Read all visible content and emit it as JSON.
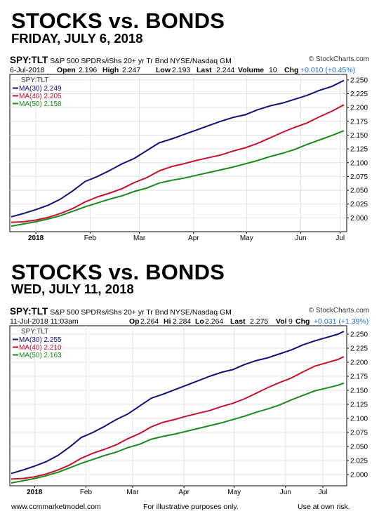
{
  "panels": [
    {
      "title": "STOCKS vs. BONDS",
      "subtitle": "FRIDAY, JULY 6, 2018",
      "symbol": "SPY:TLT",
      "description": "S&P 500 SPDRs/iShs 20+ yr Tr Bnd  NYSE/Nasdaq GM",
      "brand": "© StockCharts.com",
      "quote": [
        {
          "text": "6-Jul-2018",
          "bold": false
        },
        {
          "text": "Open",
          "bold": true
        },
        {
          "text": "2.196",
          "bold": false
        },
        {
          "text": "High",
          "bold": true
        },
        {
          "text": "2.247",
          "bold": false
        },
        {
          "text": "Low",
          "bold": true
        },
        {
          "text": "2.193",
          "bold": false
        },
        {
          "text": "Last",
          "bold": true
        },
        {
          "text": "2.244",
          "bold": false
        },
        {
          "text": "Volume",
          "bold": true
        },
        {
          "text": "10",
          "bold": false
        },
        {
          "text": "Chg",
          "bold": true
        },
        {
          "text": "+0.010 (+0.45%)",
          "bold": false,
          "chg": true
        }
      ]
    },
    {
      "title": "STOCKS vs. BONDS",
      "subtitle": "WED, JULY 11, 2018",
      "symbol": "SPY:TLT",
      "description": "S&P 500 SPDRs/iShs 20+ yr Tr Bnd  NYSE/Nasdaq GM",
      "brand": "© StockCharts.com",
      "quote": [
        {
          "text": "11-Jul-2018 11:03am",
          "bold": false
        },
        {
          "text": "Op",
          "bold": true
        },
        {
          "text": "2.264",
          "bold": false
        },
        {
          "text": "Hi",
          "bold": true
        },
        {
          "text": "2.284",
          "bold": false
        },
        {
          "text": "Lo",
          "bold": true
        },
        {
          "text": "2.264",
          "bold": false
        },
        {
          "text": "Last",
          "bold": true
        },
        {
          "text": "2.275",
          "bold": false
        },
        {
          "text": "Vol",
          "bold": true
        },
        {
          "text": "9",
          "bold": false
        },
        {
          "text": "Chg",
          "bold": true
        },
        {
          "text": "+0.031 (+1.39%)",
          "bold": false,
          "chg": true
        }
      ]
    }
  ],
  "chart_data": [
    {
      "type": "line",
      "legend_placement": "top-left",
      "legend_title": "SPY:TLT",
      "ylim": [
        1.975,
        2.26
      ],
      "xlim": [
        0,
        27
      ],
      "y_ticks": [
        2.0,
        2.025,
        2.05,
        2.075,
        2.1,
        2.125,
        2.15,
        2.175,
        2.2,
        2.225,
        2.25
      ],
      "y_tick_labels": [
        "2.000",
        "2.025",
        "2.050",
        "2.075",
        "2.100",
        "2.125",
        "2.150",
        "2.175",
        "2.200",
        "2.225",
        "2.250"
      ],
      "x_ticks": [
        {
          "x": 2,
          "label": "2018",
          "bold": true
        },
        {
          "x": 6.4,
          "label": "Feb"
        },
        {
          "x": 10.4,
          "label": "Mar"
        },
        {
          "x": 14.8,
          "label": "Apr"
        },
        {
          "x": 19.1,
          "label": "May"
        },
        {
          "x": 23.5,
          "label": "Jun"
        },
        {
          "x": 26.7,
          "label": "Jul"
        }
      ],
      "grid": true,
      "series": [
        {
          "name": "MA(30) 2.249",
          "color": "#10107a",
          "x": [
            0,
            1,
            2,
            3,
            4,
            5,
            6,
            7,
            8,
            9,
            10,
            11,
            12,
            13,
            14,
            15,
            16,
            17,
            18,
            19,
            20,
            21,
            22,
            23,
            24,
            25,
            26,
            27
          ],
          "values": [
            2.002,
            2.008,
            2.015,
            2.023,
            2.034,
            2.049,
            2.066,
            2.075,
            2.086,
            2.098,
            2.108,
            2.122,
            2.136,
            2.143,
            2.151,
            2.159,
            2.167,
            2.175,
            2.182,
            2.187,
            2.196,
            2.203,
            2.208,
            2.215,
            2.222,
            2.231,
            2.238,
            2.249
          ]
        },
        {
          "name": "MA(40) 2.205",
          "color": "#c8102e",
          "x": [
            0,
            1,
            2,
            3,
            4,
            5,
            6,
            7,
            8,
            9,
            10,
            11,
            12,
            13,
            14,
            15,
            16,
            17,
            18,
            19,
            20,
            21,
            22,
            23,
            24,
            25,
            26,
            27
          ],
          "values": [
            1.992,
            1.993,
            1.996,
            2.001,
            2.008,
            2.017,
            2.029,
            2.038,
            2.045,
            2.053,
            2.064,
            2.073,
            2.085,
            2.093,
            2.098,
            2.104,
            2.109,
            2.114,
            2.121,
            2.127,
            2.135,
            2.145,
            2.155,
            2.164,
            2.172,
            2.183,
            2.193,
            2.205
          ]
        },
        {
          "name": "MA(50) 2.158",
          "color": "#1a8a1a",
          "x": [
            0,
            1,
            2,
            3,
            4,
            5,
            6,
            7,
            8,
            9,
            10,
            11,
            12,
            13,
            14,
            15,
            16,
            17,
            18,
            19,
            20,
            21,
            22,
            23,
            24,
            25,
            26,
            27
          ],
          "values": [
            1.985,
            1.989,
            1.993,
            1.998,
            2.004,
            2.012,
            2.02,
            2.027,
            2.034,
            2.04,
            2.048,
            2.054,
            2.063,
            2.068,
            2.072,
            2.077,
            2.082,
            2.087,
            2.092,
            2.098,
            2.104,
            2.111,
            2.117,
            2.124,
            2.133,
            2.141,
            2.149,
            2.158
          ]
        }
      ]
    },
    {
      "type": "line",
      "legend_placement": "top-left",
      "legend_title": "SPY:TLT",
      "ylim": [
        1.98,
        2.265
      ],
      "xlim": [
        0,
        28.5
      ],
      "y_ticks": [
        2.0,
        2.025,
        2.05,
        2.075,
        2.1,
        2.125,
        2.15,
        2.175,
        2.2,
        2.225,
        2.25
      ],
      "y_tick_labels": [
        "2.000",
        "2.025",
        "2.050",
        "2.075",
        "2.100",
        "2.125",
        "2.150",
        "2.175",
        "2.200",
        "2.225",
        "2.250"
      ],
      "x_ticks": [
        {
          "x": 2,
          "label": "2018",
          "bold": true
        },
        {
          "x": 6.4,
          "label": "Feb"
        },
        {
          "x": 10.4,
          "label": "Mar"
        },
        {
          "x": 14.8,
          "label": "Apr"
        },
        {
          "x": 19.1,
          "label": "May"
        },
        {
          "x": 23.5,
          "label": "Jun"
        },
        {
          "x": 26.7,
          "label": "Jul"
        }
      ],
      "grid": true,
      "series": [
        {
          "name": "MA(30) 2.255",
          "color": "#10107a",
          "x": [
            0,
            1,
            2,
            3,
            4,
            5,
            6,
            7,
            8,
            9,
            10,
            11,
            12,
            13,
            14,
            15,
            16,
            17,
            18,
            19,
            20,
            21,
            22,
            23,
            24,
            25,
            26,
            27,
            28,
            28.5
          ],
          "values": [
            2.002,
            2.008,
            2.015,
            2.023,
            2.034,
            2.049,
            2.066,
            2.075,
            2.086,
            2.098,
            2.108,
            2.122,
            2.136,
            2.143,
            2.151,
            2.159,
            2.167,
            2.175,
            2.182,
            2.187,
            2.196,
            2.203,
            2.208,
            2.215,
            2.222,
            2.231,
            2.238,
            2.244,
            2.25,
            2.255
          ]
        },
        {
          "name": "MA(40) 2.210",
          "color": "#c8102e",
          "x": [
            0,
            1,
            2,
            3,
            4,
            5,
            6,
            7,
            8,
            9,
            10,
            11,
            12,
            13,
            14,
            15,
            16,
            17,
            18,
            19,
            20,
            21,
            22,
            23,
            24,
            25,
            26,
            27,
            28,
            28.5
          ],
          "values": [
            1.992,
            1.993,
            1.996,
            2.001,
            2.008,
            2.017,
            2.029,
            2.038,
            2.045,
            2.053,
            2.064,
            2.073,
            2.085,
            2.093,
            2.098,
            2.104,
            2.109,
            2.114,
            2.121,
            2.127,
            2.135,
            2.145,
            2.155,
            2.164,
            2.172,
            2.183,
            2.193,
            2.199,
            2.205,
            2.21
          ]
        },
        {
          "name": "MA(50) 2.163",
          "color": "#1a8a1a",
          "x": [
            0,
            1,
            2,
            3,
            4,
            5,
            6,
            7,
            8,
            9,
            10,
            11,
            12,
            13,
            14,
            15,
            16,
            17,
            18,
            19,
            20,
            21,
            22,
            23,
            24,
            25,
            26,
            27,
            28,
            28.5
          ],
          "values": [
            1.985,
            1.989,
            1.993,
            1.998,
            2.004,
            2.012,
            2.02,
            2.027,
            2.034,
            2.04,
            2.048,
            2.054,
            2.063,
            2.068,
            2.072,
            2.077,
            2.082,
            2.087,
            2.092,
            2.098,
            2.104,
            2.111,
            2.117,
            2.124,
            2.133,
            2.141,
            2.149,
            2.154,
            2.159,
            2.163
          ]
        }
      ]
    }
  ],
  "footer": {
    "left": "www.ccmmarketmodel.com",
    "center": "For illustrative purposes only.",
    "right": "Use at own risk."
  }
}
